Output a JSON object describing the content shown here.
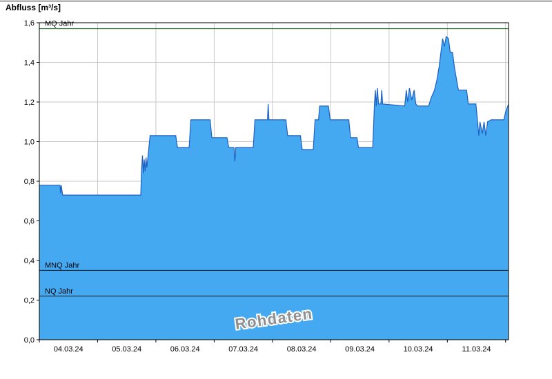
{
  "chart": {
    "title": "Abfluss [m³/s]"
  },
  "chart_data": {
    "type": "area",
    "title": "Abfluss [m³/s]",
    "ylabel": "Abfluss [m³/s]",
    "xlabel": "",
    "grid": true,
    "legend": "none",
    "watermark": "Rohdaten",
    "ylim": [
      0.0,
      1.6
    ],
    "ytick_step": 0.2,
    "ytick_values": [
      0.0,
      0.2,
      0.4,
      0.6,
      0.8,
      1.0,
      1.2,
      1.4,
      1.6
    ],
    "ytick_labels": [
      "0,0",
      "0,2",
      "0,4",
      "0,6",
      "0,8",
      "1,0",
      "1,2",
      "1,4",
      "1,6"
    ],
    "xlim_days": [
      0,
      8.05
    ],
    "x_day_labels": [
      "04.03.24",
      "05.03.24",
      "06.03.24",
      "07.03.24",
      "08.03.24",
      "09.03.24",
      "10.03.24",
      "11.03.24"
    ],
    "reference_lines": [
      {
        "id": "mq-jahr",
        "label": "MQ Jahr",
        "value": 1.57,
        "color": "#00691c"
      },
      {
        "id": "mnq-jahr",
        "label": "MNQ Jahr",
        "value": 0.35,
        "color": "#1a1a1a"
      },
      {
        "id": "nq-jahr",
        "label": "NQ Jahr",
        "value": 0.22,
        "color": "#1a1a1a"
      }
    ],
    "series": [
      {
        "name": "Abfluss Rohdaten",
        "fill_color": "#45a9f1",
        "line_color": "#1e5fc4",
        "points": [
          [
            0.0,
            0.78
          ],
          [
            0.355,
            0.78
          ],
          [
            0.365,
            0.74
          ],
          [
            0.375,
            0.78
          ],
          [
            0.4,
            0.73
          ],
          [
            1.74,
            0.73
          ],
          [
            1.755,
            0.86
          ],
          [
            1.77,
            0.93
          ],
          [
            1.785,
            0.84
          ],
          [
            1.8,
            0.91
          ],
          [
            1.815,
            0.85
          ],
          [
            1.83,
            0.92
          ],
          [
            1.845,
            0.87
          ],
          [
            1.9,
            1.03
          ],
          [
            2.34,
            1.03
          ],
          [
            2.37,
            0.97
          ],
          [
            2.57,
            0.97
          ],
          [
            2.6,
            1.11
          ],
          [
            2.93,
            1.11
          ],
          [
            2.96,
            1.02
          ],
          [
            3.22,
            1.02
          ],
          [
            3.25,
            0.97
          ],
          [
            3.34,
            0.97
          ],
          [
            3.355,
            0.9
          ],
          [
            3.37,
            0.97
          ],
          [
            3.67,
            0.97
          ],
          [
            3.7,
            1.11
          ],
          [
            3.915,
            1.11
          ],
          [
            3.925,
            1.19
          ],
          [
            3.94,
            1.11
          ],
          [
            4.23,
            1.11
          ],
          [
            4.26,
            1.03
          ],
          [
            4.48,
            1.03
          ],
          [
            4.51,
            0.96
          ],
          [
            4.7,
            0.96
          ],
          [
            4.73,
            1.11
          ],
          [
            4.79,
            1.11
          ],
          [
            4.81,
            1.18
          ],
          [
            4.96,
            1.18
          ],
          [
            4.99,
            1.11
          ],
          [
            5.31,
            1.11
          ],
          [
            5.34,
            1.02
          ],
          [
            5.45,
            1.02
          ],
          [
            5.475,
            0.97
          ],
          [
            5.72,
            0.97
          ],
          [
            5.75,
            1.19
          ],
          [
            5.765,
            1.26
          ],
          [
            5.78,
            1.18
          ],
          [
            5.8,
            1.27
          ],
          [
            5.82,
            1.19
          ],
          [
            5.86,
            1.19
          ],
          [
            5.875,
            1.26
          ],
          [
            5.89,
            1.19
          ],
          [
            6.27,
            1.18
          ],
          [
            6.295,
            1.26
          ],
          [
            6.32,
            1.2
          ],
          [
            6.35,
            1.27
          ],
          [
            6.39,
            1.21
          ],
          [
            6.43,
            1.26
          ],
          [
            6.46,
            1.19
          ],
          [
            6.49,
            1.18
          ],
          [
            6.68,
            1.18
          ],
          [
            6.72,
            1.22
          ],
          [
            6.78,
            1.26
          ],
          [
            6.82,
            1.31
          ],
          [
            6.86,
            1.38
          ],
          [
            6.89,
            1.45
          ],
          [
            6.92,
            1.52
          ],
          [
            6.95,
            1.48
          ],
          [
            6.98,
            1.53
          ],
          [
            7.02,
            1.52
          ],
          [
            7.05,
            1.45
          ],
          [
            7.09,
            1.45
          ],
          [
            7.12,
            1.38
          ],
          [
            7.16,
            1.31
          ],
          [
            7.19,
            1.26
          ],
          [
            7.33,
            1.26
          ],
          [
            7.36,
            1.19
          ],
          [
            7.49,
            1.19
          ],
          [
            7.52,
            1.1
          ],
          [
            7.54,
            1.03
          ],
          [
            7.56,
            1.1
          ],
          [
            7.6,
            1.04
          ],
          [
            7.63,
            1.1
          ],
          [
            7.66,
            1.03
          ],
          [
            7.69,
            1.1
          ],
          [
            7.75,
            1.11
          ],
          [
            7.97,
            1.11
          ],
          [
            8.0,
            1.15
          ],
          [
            8.05,
            1.19
          ]
        ]
      }
    ]
  }
}
